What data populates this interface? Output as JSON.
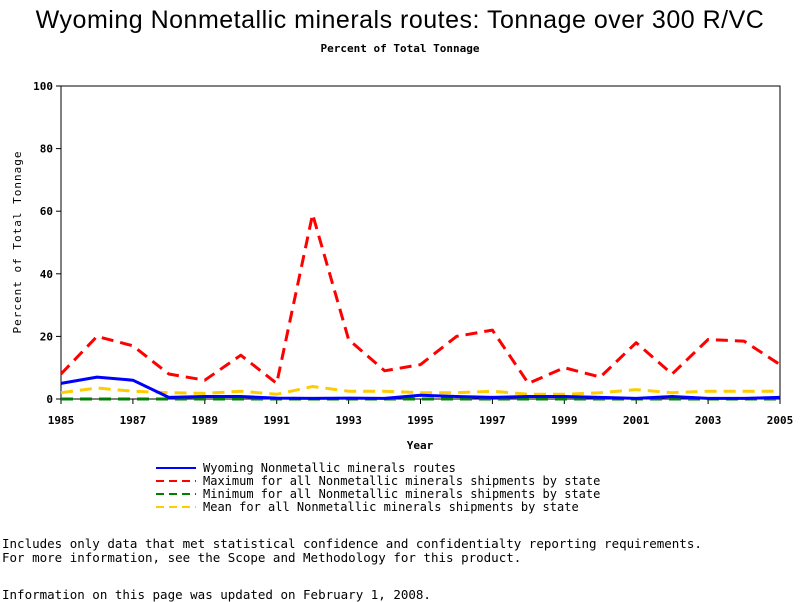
{
  "chart_data": {
    "type": "line",
    "title": "Wyoming Nonmetallic minerals routes: Tonnage over 300 R/VC",
    "subtitle": "Percent of Total Tonnage",
    "xlabel": "Year",
    "ylabel": "Percent of Total Tonnage",
    "xlim": [
      1985,
      2005
    ],
    "ylim": [
      0,
      100
    ],
    "x_ticks": [
      "1985",
      "1987",
      "1989",
      "1991",
      "1993",
      "1995",
      "1997",
      "1999",
      "2001",
      "2003",
      "2005"
    ],
    "y_ticks": [
      "0",
      "20",
      "40",
      "60",
      "80",
      "100"
    ],
    "x": [
      1985,
      1986,
      1987,
      1988,
      1989,
      1990,
      1991,
      1992,
      1993,
      1994,
      1995,
      1996,
      1997,
      1998,
      1999,
      2000,
      2001,
      2002,
      2003,
      2004,
      2005
    ],
    "series": [
      {
        "name": "Wyoming Nonmetallic minerals routes",
        "color": "#0000ff",
        "dash": "solid",
        "values": [
          5,
          7,
          6,
          0.5,
          0.8,
          0.8,
          0.3,
          0.2,
          0.3,
          0.2,
          1.2,
          0.8,
          0.5,
          0.8,
          0.8,
          0.5,
          0.2,
          0.8,
          0.2,
          0.2,
          0.5
        ]
      },
      {
        "name": "Maximum for all Nonmetallic minerals shipments by state",
        "color": "#ff0000",
        "dash": "dashed",
        "values": [
          8,
          20,
          17,
          8,
          6,
          14,
          5,
          59,
          19,
          9,
          11,
          20,
          22,
          5,
          10,
          7,
          18,
          8,
          19,
          18.5,
          11
        ]
      },
      {
        "name": "Minimum for all Nonmetallic minerals shipments by state",
        "color": "#008000",
        "dash": "dashed",
        "values": [
          0,
          0,
          0,
          0,
          0,
          0,
          0,
          0,
          0,
          0,
          0,
          0,
          0,
          0,
          0,
          0,
          0,
          0,
          0,
          0,
          0
        ]
      },
      {
        "name": "Mean for all Nonmetallic minerals shipments by state",
        "color": "#ffcc00",
        "dash": "dashed",
        "values": [
          2,
          3.5,
          2.5,
          2,
          1.8,
          2.5,
          1.5,
          4,
          2.5,
          2.5,
          2,
          2,
          2.5,
          1.5,
          1.5,
          2,
          3,
          2,
          2.5,
          2.5,
          2.5
        ]
      }
    ]
  },
  "notes": {
    "line1": "Includes only data that met statistical confidence and confidentialty reporting requirements.",
    "line2": "For more information, see the Scope and Methodology for this product.",
    "updated": "Information on this page was updated on February 1, 2008."
  }
}
